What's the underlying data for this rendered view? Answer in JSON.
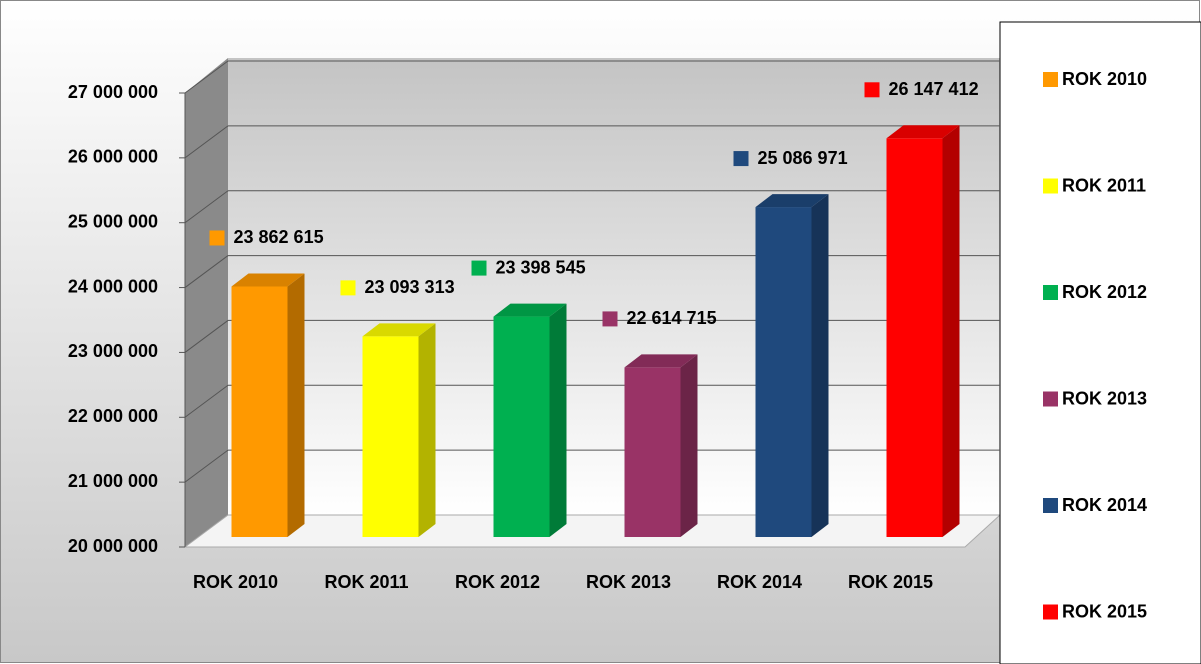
{
  "chart_data": {
    "type": "bar3d",
    "categories": [
      "ROK 2010",
      "ROK 2011",
      "ROK 2012",
      "ROK 2013",
      "ROK 2014",
      "ROK 2015"
    ],
    "values": [
      23862615,
      23093313,
      23398545,
      22614715,
      25086971,
      26147412
    ],
    "value_labels": [
      "23 862 615",
      "23 093 313",
      "23 398 545",
      "22 614 715",
      "25 086 971",
      "26 147 412"
    ],
    "colors": [
      "#ff9900",
      "#ffff00",
      "#00b050",
      "#993366",
      "#1f497d",
      "#ff0000"
    ],
    "ylim": [
      20000000,
      27000000
    ],
    "yticks": [
      {
        "value": 20000000,
        "label": "20 000 000"
      },
      {
        "value": 21000000,
        "label": "21 000 000"
      },
      {
        "value": 22000000,
        "label": "22 000 000"
      },
      {
        "value": 23000000,
        "label": "23 000 000"
      },
      {
        "value": 24000000,
        "label": "24 000 000"
      },
      {
        "value": 25000000,
        "label": "25 000 000"
      },
      {
        "value": 26000000,
        "label": "26 000 000"
      },
      {
        "value": 27000000,
        "label": "27 000 000"
      }
    ],
    "grid": true,
    "legend": "right"
  }
}
